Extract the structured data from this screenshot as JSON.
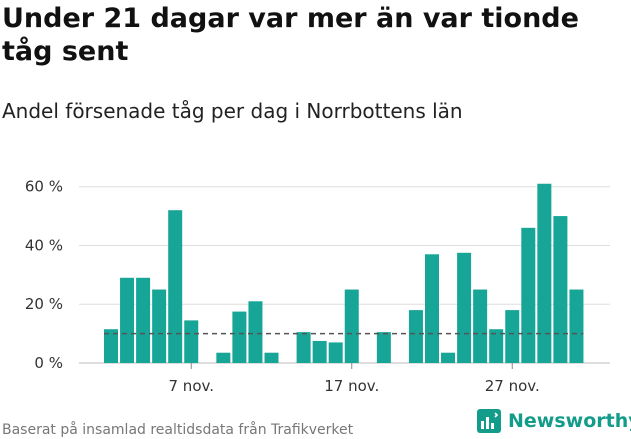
{
  "header": {
    "title": "Under 21 dagar var mer än var tionde tåg sent",
    "subtitle": "Andel försenade tåg per dag i Norrbottens län"
  },
  "footer": {
    "source": "Baserat på insamlad realtidsdata från Trafikverket",
    "brand": "Newsworthy",
    "brand_icon": "newsworthy-logo-icon"
  },
  "colors": {
    "bar": "#16a596",
    "threshold_line": "#555555",
    "grid": "#dddddd",
    "brand": "#149c8a"
  },
  "chart_data": {
    "type": "bar",
    "x_unit": "day (November)",
    "y_unit": "%",
    "ylim": [
      0,
      65
    ],
    "yticks": [
      0,
      20,
      40,
      60
    ],
    "ytick_labels": [
      "0 %",
      "20 %",
      "40 %",
      "60 %"
    ],
    "xticks": [
      7,
      17,
      27
    ],
    "xtick_labels": [
      "7 nov.",
      "17 nov.",
      "27 nov."
    ],
    "reference_line": {
      "value": 10,
      "style": "dashed"
    },
    "grid": "horizontal",
    "points": [
      {
        "day": 2,
        "value": 11.5
      },
      {
        "day": 3,
        "value": 29
      },
      {
        "day": 4,
        "value": 29
      },
      {
        "day": 5,
        "value": 25
      },
      {
        "day": 6,
        "value": 52
      },
      {
        "day": 7,
        "value": 14.5
      },
      {
        "day": 8,
        "value": 0
      },
      {
        "day": 9,
        "value": 3.5
      },
      {
        "day": 10,
        "value": 17.5
      },
      {
        "day": 11,
        "value": 21
      },
      {
        "day": 12,
        "value": 3.5
      },
      {
        "day": 13,
        "value": 0
      },
      {
        "day": 14,
        "value": 10.5
      },
      {
        "day": 15,
        "value": 7.5
      },
      {
        "day": 16,
        "value": 7
      },
      {
        "day": 17,
        "value": 25
      },
      {
        "day": 18,
        "value": 0
      },
      {
        "day": 19,
        "value": 10.5
      },
      {
        "day": 20,
        "value": 0
      },
      {
        "day": 21,
        "value": 18
      },
      {
        "day": 22,
        "value": 37
      },
      {
        "day": 23,
        "value": 3.5
      },
      {
        "day": 24,
        "value": 37.5
      },
      {
        "day": 25,
        "value": 25
      },
      {
        "day": 26,
        "value": 11.5
      },
      {
        "day": 27,
        "value": 18
      },
      {
        "day": 28,
        "value": 46
      },
      {
        "day": 29,
        "value": 61
      },
      {
        "day": 30,
        "value": 50
      },
      {
        "day": 31,
        "value": 25
      }
    ]
  }
}
